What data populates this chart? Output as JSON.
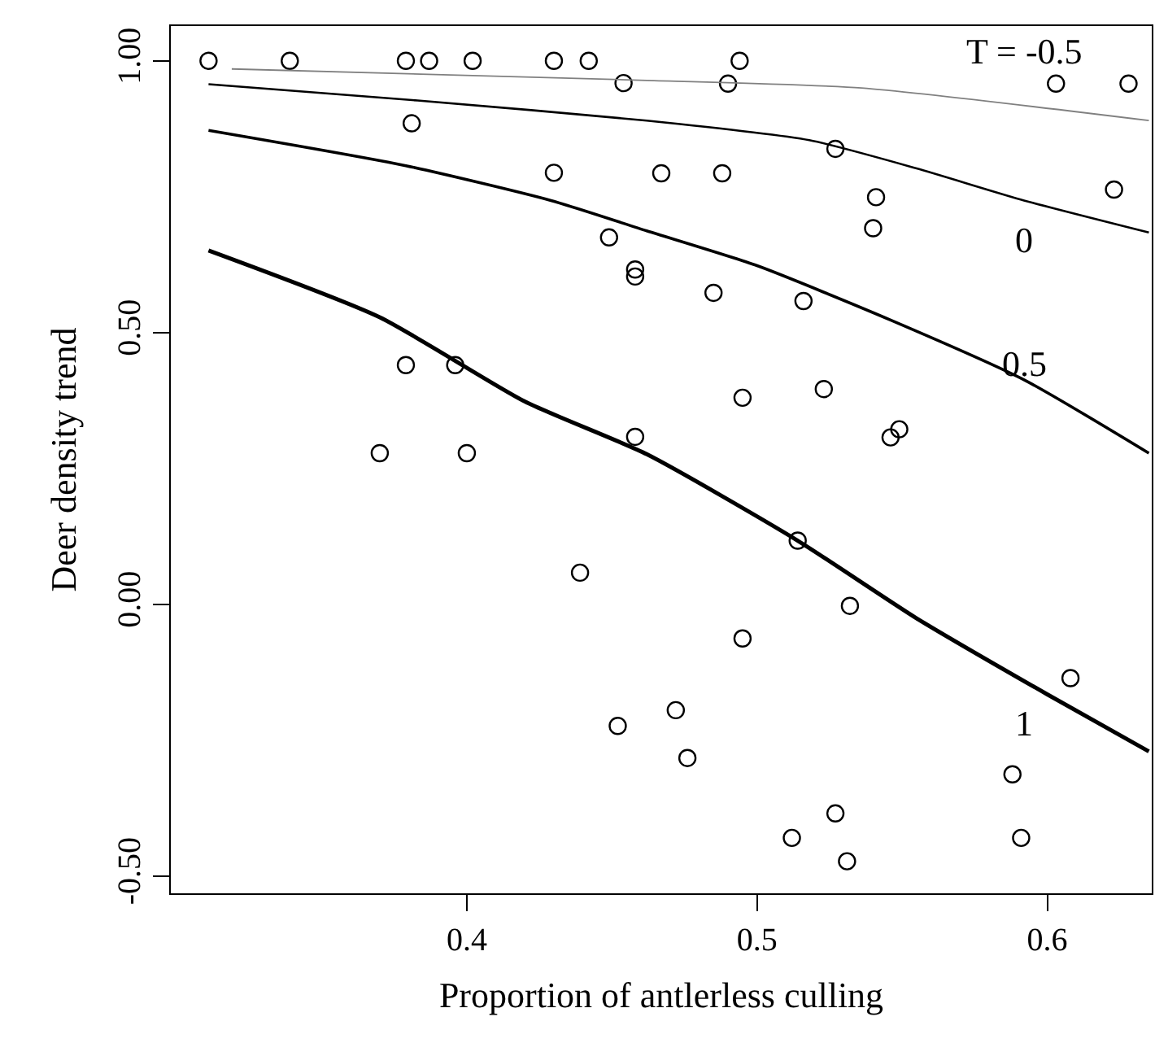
{
  "chart_data": {
    "type": "scatter",
    "xlabel": "Proportion of antlerless culling",
    "ylabel": "Deer density trend",
    "xlim": [
      0.298,
      0.636
    ],
    "ylim": [
      -0.532,
      1.064
    ],
    "xticks": [
      0.4,
      0.5,
      0.6
    ],
    "yticks": [
      {
        "value": 1,
        "label": "1.00"
      },
      {
        "value": 0.5,
        "label": "0.50"
      },
      {
        "value": 0,
        "label": "0.00"
      },
      {
        "value": -0.5,
        "label": "-0.50"
      }
    ],
    "legend": false,
    "series": [
      {
        "marker": "circle",
        "color": "#000000",
        "x": [
          0.311,
          0.339,
          0.379,
          0.387,
          0.402,
          0.43,
          0.442,
          0.454,
          0.381,
          0.43,
          0.449,
          0.458,
          0.458,
          0.379,
          0.396,
          0.458,
          0.37,
          0.4,
          0.439,
          0.452,
          0.494,
          0.49,
          0.603,
          0.628,
          0.527,
          0.467,
          0.488,
          0.541,
          0.54,
          0.623,
          0.485,
          0.516,
          0.495,
          0.523,
          0.549,
          0.546,
          0.514,
          0.532,
          0.495,
          0.608,
          0.472,
          0.476,
          0.588,
          0.527,
          0.512,
          0.591,
          0.531
        ],
        "values": [
          1.0,
          1.0,
          1.0,
          1.0,
          1.0,
          1.0,
          1.0,
          0.959,
          0.885,
          0.794,
          0.675,
          0.616,
          0.603,
          0.44,
          0.44,
          0.308,
          0.278,
          0.278,
          0.058,
          -0.224,
          1.0,
          0.958,
          0.958,
          0.958,
          0.838,
          0.793,
          0.793,
          0.749,
          0.692,
          0.763,
          0.573,
          0.558,
          0.38,
          0.396,
          0.322,
          0.307,
          0.117,
          -0.003,
          -0.063,
          -0.136,
          -0.195,
          -0.283,
          -0.313,
          -0.385,
          -0.43,
          -0.43,
          -0.473
        ]
      },
      {
        "type": "line",
        "name": "T = -0.5",
        "color": "#808080",
        "x": [
          0.319,
          0.462,
          0.536,
          0.635
        ],
        "values": [
          0.985,
          0.964,
          0.95,
          0.89
        ]
      },
      {
        "type": "line",
        "name": "0",
        "color": "#000000",
        "x": [
          0.311,
          0.383,
          0.462,
          0.518,
          0.555,
          0.592,
          0.635
        ],
        "values": [
          0.957,
          0.927,
          0.89,
          0.854,
          0.802,
          0.743,
          0.684
        ]
      },
      {
        "type": "line",
        "name": "0.5",
        "color": "#000000",
        "x": [
          0.311,
          0.379,
          0.429,
          0.462,
          0.5,
          0.546,
          0.592,
          0.635
        ],
        "values": [
          0.872,
          0.807,
          0.743,
          0.687,
          0.623,
          0.523,
          0.413,
          0.278
        ]
      },
      {
        "type": "line",
        "name": "1",
        "color": "#000000",
        "x": [
          0.311,
          0.37,
          0.42,
          0.462,
          0.514,
          0.555,
          0.6,
          0.635
        ],
        "values": [
          0.651,
          0.528,
          0.373,
          0.276,
          0.117,
          -0.026,
          -0.166,
          -0.271
        ]
      }
    ]
  }
}
